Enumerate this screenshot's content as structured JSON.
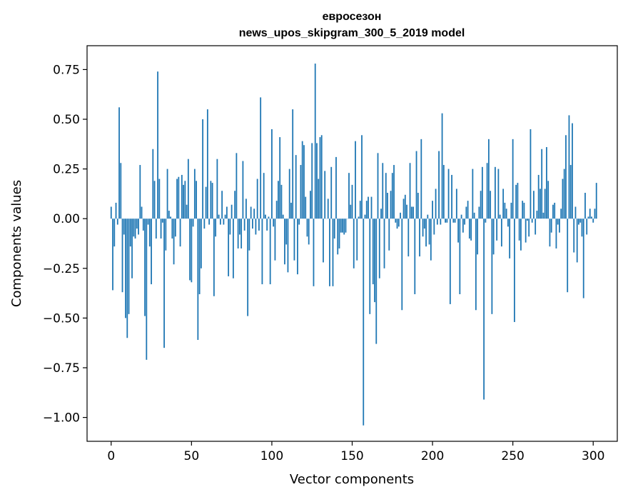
{
  "chart_data": {
    "type": "bar",
    "title_line1": "евросезон",
    "title_line2": "news_upos_skipgram_300_5_2019 model",
    "xlabel": "Vector components",
    "ylabel": "Components values",
    "xlim": [
      -15,
      315
    ],
    "ylim": [
      -1.12,
      0.87
    ],
    "x_ticks": [
      0,
      50,
      100,
      150,
      200,
      250,
      300
    ],
    "y_ticks": [
      0.75,
      0.5,
      0.25,
      0.0,
      -0.25,
      -0.5,
      -0.75,
      -1.0
    ],
    "x_tick_labels": [
      "0",
      "50",
      "100",
      "150",
      "200",
      "250",
      "300"
    ],
    "y_tick_labels": [
      "0.75",
      "0.50",
      "0.25",
      "0.00",
      "−0.25",
      "−0.50",
      "−0.75",
      "−1.00"
    ],
    "bar_color": "#1f77b4",
    "values": [
      0.06,
      -0.36,
      -0.14,
      0.08,
      -0.03,
      0.56,
      0.28,
      -0.37,
      -0.08,
      -0.5,
      -0.6,
      -0.48,
      -0.14,
      -0.3,
      -0.09,
      -0.1,
      -0.05,
      -0.08,
      0.27,
      0.06,
      -0.06,
      -0.49,
      -0.71,
      -0.03,
      -0.14,
      -0.33,
      0.35,
      0.19,
      -0.1,
      0.74,
      0.2,
      -0.1,
      -0.02,
      -0.65,
      -0.16,
      0.25,
      0.04,
      0.01,
      -0.1,
      -0.23,
      -0.09,
      0.2,
      0.21,
      -0.14,
      0.22,
      0.17,
      0.19,
      0.07,
      0.3,
      -0.31,
      -0.32,
      -0.04,
      0.25,
      0.19,
      -0.61,
      -0.38,
      -0.25,
      0.5,
      -0.05,
      0.16,
      0.55,
      -0.03,
      0.19,
      0.18,
      -0.39,
      -0.09,
      0.3,
      0.02,
      -0.03,
      0.14,
      -0.03,
      0.02,
      0.06,
      -0.29,
      -0.08,
      0.07,
      -0.3,
      0.14,
      0.33,
      -0.15,
      -0.08,
      -0.15,
      0.29,
      -0.06,
      0.1,
      -0.49,
      -0.16,
      0.06,
      -0.05,
      0.05,
      -0.08,
      0.2,
      -0.06,
      0.61,
      -0.33,
      0.23,
      0.02,
      -0.06,
      0.01,
      -0.33,
      0.45,
      -0.04,
      -0.21,
      0.09,
      0.19,
      0.41,
      0.17,
      0.02,
      -0.23,
      -0.13,
      -0.27,
      0.25,
      0.08,
      0.55,
      -0.21,
      0.32,
      -0.28,
      -0.03,
      0.27,
      0.39,
      0.37,
      0.11,
      -0.09,
      -0.13,
      0.14,
      0.38,
      -0.34,
      0.78,
      0.38,
      0.2,
      0.41,
      0.42,
      -0.22,
      0.24,
      0.0,
      0.1,
      -0.34,
      0.26,
      -0.34,
      -0.1,
      0.31,
      -0.18,
      -0.15,
      -0.07,
      -0.07,
      -0.08,
      -0.07,
      0.0,
      0.23,
      0.07,
      0.17,
      -0.25,
      0.39,
      -0.21,
      0.01,
      0.09,
      0.42,
      -1.04,
      0.02,
      0.09,
      0.11,
      -0.48,
      0.11,
      -0.33,
      -0.42,
      -0.63,
      0.33,
      -0.3,
      0.05,
      0.28,
      -0.25,
      0.23,
      0.13,
      -0.16,
      0.14,
      0.23,
      0.27,
      -0.02,
      -0.05,
      -0.04,
      0.03,
      -0.46,
      0.1,
      0.12,
      0.07,
      -0.19,
      0.28,
      0.06,
      0.06,
      -0.38,
      0.34,
      0.13,
      -0.19,
      0.4,
      -0.09,
      -0.05,
      -0.14,
      0.02,
      -0.13,
      -0.21,
      0.09,
      -0.08,
      0.15,
      -0.03,
      0.34,
      -0.03,
      0.53,
      0.27,
      -0.02,
      -0.02,
      0.25,
      -0.43,
      0.22,
      -0.02,
      -0.02,
      0.15,
      -0.12,
      -0.38,
      0.02,
      -0.07,
      -0.03,
      0.06,
      0.09,
      -0.1,
      -0.11,
      0.25,
      0.03,
      -0.46,
      -0.18,
      0.06,
      0.14,
      0.26,
      -0.91,
      -0.02,
      0.28,
      0.4,
      0.14,
      -0.48,
      -0.18,
      0.26,
      -0.11,
      0.25,
      0.02,
      -0.14,
      0.15,
      0.08,
      0.05,
      -0.04,
      -0.2,
      0.08,
      0.4,
      -0.52,
      0.17,
      0.18,
      -0.11,
      -0.16,
      0.09,
      0.08,
      -0.12,
      -0.01,
      -0.09,
      0.45,
      -0.02,
      0.14,
      -0.08,
      0.04,
      0.22,
      0.15,
      0.35,
      0.03,
      0.15,
      0.36,
      0.19,
      -0.14,
      -0.07,
      0.07,
      0.08,
      -0.15,
      -0.03,
      -0.07,
      0.05,
      0.2,
      0.25,
      0.42,
      -0.37,
      0.52,
      0.27,
      0.48,
      -0.17,
      0.06,
      -0.22,
      -0.03,
      -0.02,
      -0.09,
      -0.4,
      0.13,
      -0.08,
      0.01,
      0.05,
      0.01,
      -0.02,
      0.05,
      0.18
    ]
  }
}
